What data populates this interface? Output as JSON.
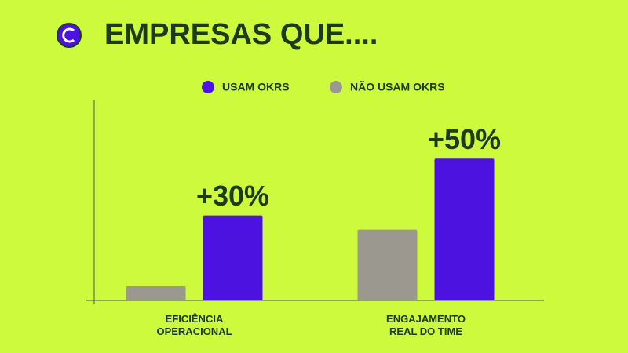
{
  "chart_data": {
    "type": "bar",
    "title": "EMPRESAS QUE....",
    "categories": [
      "EFICIÊNCIA OPERACIONAL",
      "ENGAJAMENTO REAL DO TIME"
    ],
    "series": [
      {
        "name": "NÃO USAM OKRS",
        "color": "#9b9890",
        "values": [
          5,
          25
        ]
      },
      {
        "name": "USAM OKRS",
        "color": "#4b12e0",
        "values": [
          30,
          50
        ],
        "value_labels": [
          "+30%",
          "+50%"
        ]
      }
    ],
    "ylim": [
      0,
      70
    ]
  }
}
